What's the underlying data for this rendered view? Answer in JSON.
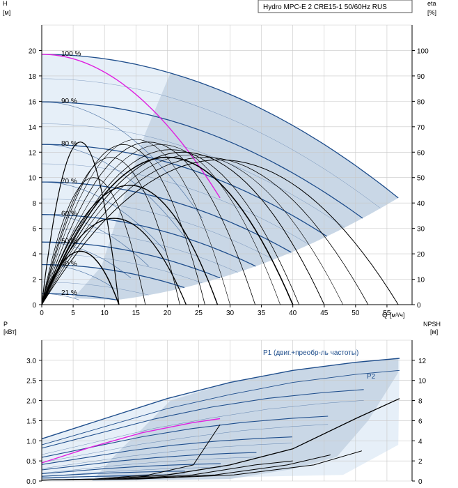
{
  "chart_data": [
    {
      "type": "line",
      "panel": "pump-curve",
      "title": "Hydro MPC-E 2 CRE15-1 50/60Hz RUS",
      "ylabel": "H",
      "yunit": "[м]",
      "y2label": "eta",
      "y2unit": "[%]",
      "xlabel": "Q",
      "xunit": "[м³/ч]",
      "xlim": [
        0,
        59
      ],
      "ylim": [
        0,
        22
      ],
      "y2lim": [
        0,
        110
      ],
      "xticks": [
        "0",
        "5",
        "10",
        "15",
        "20",
        "25",
        "30",
        "35",
        "40",
        "45",
        "50",
        "55"
      ],
      "yticks": [
        "0",
        "2",
        "4",
        "6",
        "8",
        "10",
        "12",
        "14",
        "16",
        "18",
        "20"
      ],
      "y2ticks": [
        "0",
        "10",
        "20",
        "30",
        "40",
        "50",
        "60",
        "70",
        "80",
        "90",
        "100"
      ],
      "speed_labels": [
        "100 %",
        "90 %",
        "80 %",
        "70 %",
        "60 %",
        "50 %",
        "40 %",
        "21 %"
      ],
      "speed_fractions": [
        1.0,
        0.9,
        0.8,
        0.7,
        0.6,
        0.5,
        0.4,
        0.21
      ],
      "single_pump_curve": {
        "h0": 19.7,
        "q_end": 28.4,
        "h_end": 8.4
      },
      "two_pump_curve": {
        "h0": 19.7,
        "q_end": 56.8,
        "h_end": 8.4
      },
      "efficiency_curve": {
        "color": "#000000",
        "peak_q": 35,
        "peak_eta": 58,
        "curve_lines": 16
      },
      "colors": {
        "envelope": "#c9d7e6",
        "envelope_light": "#e6eff8",
        "pump_curve": "#1f4e8c",
        "highlight": "#e020e0",
        "eta": "#000000",
        "grid": "#c8c8c8"
      }
    },
    {
      "type": "line",
      "panel": "power-curve",
      "ylabel": "P",
      "yunit": "[кВт]",
      "y2label": "NPSH",
      "y2unit": "[м]",
      "xlim": [
        0,
        59
      ],
      "ylim": [
        0,
        3.5
      ],
      "y2lim": [
        0,
        14
      ],
      "yticks": [
        "0.0",
        "0.5",
        "1.0",
        "1.5",
        "2.0",
        "2.5",
        "3.0"
      ],
      "y2ticks": [
        "0",
        "2",
        "4",
        "6",
        "8",
        "10",
        "12"
      ],
      "series": [
        {
          "name": "P1 (двиг.+преобр-ль частоты)",
          "x": [
            0,
            10,
            20,
            30,
            40,
            50,
            57
          ],
          "values": [
            1.05,
            1.55,
            2.05,
            2.45,
            2.75,
            2.95,
            3.05
          ]
        },
        {
          "name": "P2",
          "x": [
            0,
            10,
            20,
            30,
            40,
            50,
            57
          ],
          "values": [
            0.9,
            1.35,
            1.8,
            2.15,
            2.45,
            2.65,
            2.75
          ]
        }
      ],
      "npsh": {
        "x": [
          0,
          10,
          20,
          30,
          40,
          50,
          57
        ],
        "values": [
          0.1,
          0.2,
          0.6,
          1.6,
          3.2,
          6.2,
          8.2
        ]
      }
    }
  ]
}
